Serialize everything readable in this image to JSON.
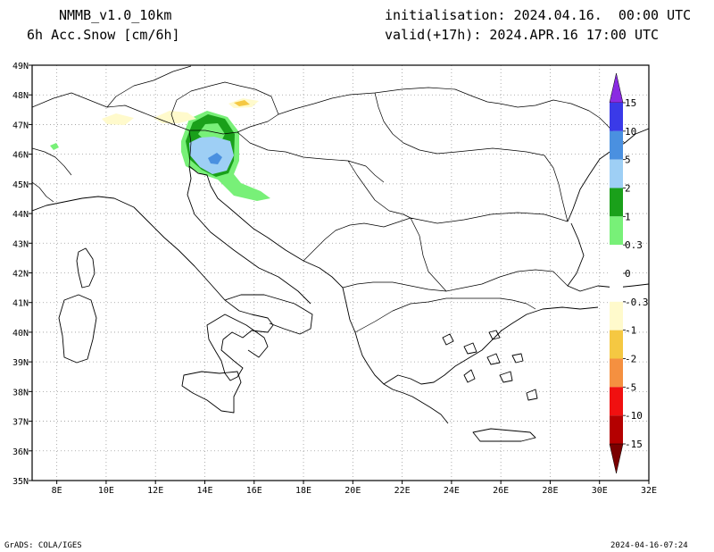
{
  "header": {
    "model": "NMMB_v1.0_10km",
    "field": "6h Acc.Snow [cm/6h]",
    "init": "initialisation: 2024.04.16.  00:00 UTC",
    "valid": "valid(+17h): 2024.APR.16 17:00 UTC"
  },
  "footer": {
    "credit": "GrADS: COLA/IGES",
    "timestamp": "2024-04-16-07:24"
  },
  "axes": {
    "lon_ticks": [
      "8E",
      "10E",
      "12E",
      "14E",
      "16E",
      "18E",
      "20E",
      "22E",
      "24E",
      "26E",
      "28E",
      "30E",
      "32E"
    ],
    "lat_ticks": [
      "49N",
      "48N",
      "47N",
      "46N",
      "45N",
      "44N",
      "43N",
      "42N",
      "41N",
      "40N",
      "39N",
      "38N",
      "37N",
      "36N",
      "35N"
    ],
    "lon_range": [
      7,
      32
    ],
    "lat_range": [
      35,
      49
    ],
    "grid": "dotted"
  },
  "colorbar": {
    "top_arrow_color": "#8a2be2",
    "bottom_arrow_color": "#7a0000",
    "segments": [
      {
        "color": "#3a3ae8"
      },
      {
        "color": "#4a90e0"
      },
      {
        "color": "#9ecff5"
      },
      {
        "color": "#1aa01a"
      },
      {
        "color": "#78f078"
      },
      {
        "color": "#ffffff"
      },
      {
        "color": "#ffffff"
      },
      {
        "color": "#fffacc"
      },
      {
        "color": "#f5c842"
      },
      {
        "color": "#f59040"
      },
      {
        "color": "#f01010"
      },
      {
        "color": "#b40000"
      }
    ],
    "labels": [
      "15",
      "10",
      "5",
      "2",
      "1",
      "0.3",
      "0",
      "-0.3",
      "-1",
      "-2",
      "-5",
      "-10",
      "-15"
    ]
  }
}
